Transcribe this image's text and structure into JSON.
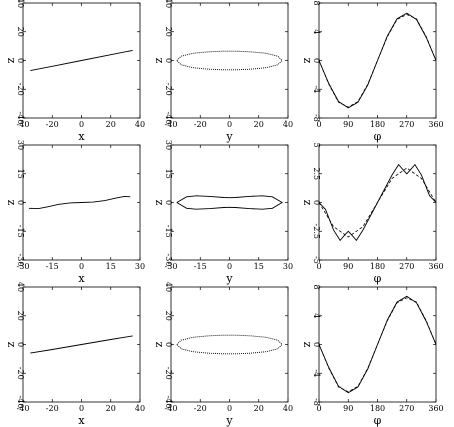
{
  "figure": {
    "rows": 3,
    "cols": 3
  },
  "chart_data": [
    {
      "type": "line",
      "row": 0,
      "col": 0,
      "xlabel": "x",
      "ylabel": "z",
      "xlim": [
        -40,
        40
      ],
      "ylim": [
        -40,
        40
      ],
      "xticks": [
        "-40",
        "-20",
        "0",
        "20",
        "40"
      ],
      "yticks": [
        "-40",
        "-20",
        "0",
        "20",
        "40"
      ],
      "series": [
        {
          "style": "solid",
          "x": [
            -35,
            -20,
            0,
            20,
            35
          ],
          "y": [
            -7,
            -4,
            0,
            4,
            7
          ]
        }
      ]
    },
    {
      "type": "line",
      "row": 0,
      "col": 1,
      "xlabel": "y",
      "ylabel": "z",
      "xlim": [
        -40,
        40
      ],
      "ylim": [
        -40,
        40
      ],
      "xticks": [
        "-40",
        "-20",
        "0",
        "20",
        "40"
      ],
      "yticks": [
        "-40",
        "-20",
        "0",
        "20",
        "40"
      ],
      "series": [
        {
          "style": "dotted",
          "x": [
            -36,
            -33,
            -25,
            -15,
            -5,
            0,
            5,
            15,
            25,
            33,
            36,
            33,
            25,
            15,
            5,
            0,
            -5,
            -15,
            -25,
            -33,
            -36
          ],
          "y": [
            0,
            3,
            5,
            6,
            6.5,
            6.5,
            6.5,
            6,
            5,
            3,
            0,
            -3,
            -5,
            -6,
            -6.5,
            -6.5,
            -6.5,
            -6,
            -5,
            -3,
            0
          ]
        }
      ]
    },
    {
      "type": "line",
      "row": 0,
      "col": 2,
      "xlabel": "φ",
      "ylabel": "z",
      "xlim": [
        0,
        360
      ],
      "ylim": [
        -8,
        8
      ],
      "xticks": [
        "0",
        "90",
        "180",
        "270",
        "360"
      ],
      "yticks": [
        "-8",
        "-4",
        "0",
        "4",
        "8"
      ],
      "series": [
        {
          "style": "solid",
          "x": [
            0,
            30,
            60,
            90,
            120,
            150,
            180,
            210,
            240,
            270,
            300,
            330,
            360
          ],
          "y": [
            0,
            -3.2,
            -5.7,
            -6.6,
            -5.8,
            -3.4,
            0,
            3.4,
            5.8,
            6.6,
            5.7,
            3.2,
            0
          ]
        },
        {
          "style": "dashed",
          "x": [
            0,
            30,
            60,
            90,
            120,
            150,
            180,
            210,
            240,
            270,
            300,
            330,
            360
          ],
          "y": [
            0,
            -3.3,
            -5.8,
            -6.5,
            -5.7,
            -3.3,
            0,
            3.3,
            5.7,
            6.4,
            5.8,
            3.3,
            0
          ]
        }
      ]
    },
    {
      "type": "line",
      "row": 1,
      "col": 0,
      "xlabel": "x",
      "ylabel": "z",
      "xlim": [
        -30,
        30
      ],
      "ylim": [
        -30,
        30
      ],
      "xticks": [
        "-30",
        "-15",
        "0",
        "15",
        "30"
      ],
      "yticks": [
        "-30",
        "-15",
        "0",
        "15",
        "30"
      ],
      "series": [
        {
          "style": "solid",
          "x": [
            -27,
            -22,
            -17,
            -12,
            -6,
            0,
            6,
            12,
            17,
            22,
            25
          ],
          "y": [
            -3,
            -3.2,
            -2.2,
            -1,
            -0.2,
            0,
            0.2,
            1,
            2.2,
            3.2,
            3
          ]
        }
      ]
    },
    {
      "type": "line",
      "row": 1,
      "col": 1,
      "xlabel": "y",
      "ylabel": "z",
      "xlim": [
        -30,
        30
      ],
      "ylim": [
        -30,
        30
      ],
      "xticks": [
        "-30",
        "-15",
        "0",
        "15",
        "30"
      ],
      "yticks": [
        "-30",
        "-15",
        "0",
        "15",
        "30"
      ],
      "series": [
        {
          "style": "solid",
          "x": [
            -27,
            -22,
            -17,
            -10,
            -3,
            0,
            3,
            10,
            17,
            22,
            27,
            22,
            17,
            10,
            3,
            0,
            -3,
            -10,
            -17,
            -22,
            -27
          ],
          "y": [
            0,
            3,
            3.5,
            3.2,
            2.6,
            2.5,
            2.6,
            3.2,
            3.5,
            3,
            0,
            -3,
            -3.5,
            -3.2,
            -2.6,
            -2.5,
            -2.6,
            -3.2,
            -3.5,
            -3,
            0
          ]
        }
      ]
    },
    {
      "type": "line",
      "row": 1,
      "col": 2,
      "xlabel": "φ",
      "ylabel": "z",
      "xlim": [
        0,
        360
      ],
      "ylim": [
        -5,
        5
      ],
      "xticks": [
        "0",
        "90",
        "180",
        "270",
        "360"
      ],
      "yticks": [
        "-5",
        "-2.5",
        "0",
        "2.5",
        "5"
      ],
      "series": [
        {
          "style": "solid",
          "x": [
            0,
            20,
            45,
            65,
            80,
            90,
            100,
            115,
            135,
            180,
            225,
            245,
            260,
            270,
            280,
            295,
            315,
            340,
            360
          ],
          "y": [
            0,
            -0.6,
            -2.4,
            -3.3,
            -2.8,
            -2.5,
            -2.8,
            -3.3,
            -2.4,
            0,
            2.4,
            3.3,
            2.8,
            2.5,
            2.8,
            3.3,
            2.4,
            0.6,
            0
          ]
        },
        {
          "style": "dashed",
          "x": [
            0,
            45,
            90,
            135,
            180,
            225,
            270,
            315,
            360
          ],
          "y": [
            0,
            -2.1,
            -3.0,
            -2.1,
            0,
            2.1,
            3.0,
            2.1,
            0
          ]
        }
      ]
    },
    {
      "type": "line",
      "row": 2,
      "col": 0,
      "xlabel": "x",
      "ylabel": "z",
      "xlim": [
        -40,
        40
      ],
      "ylim": [
        -40,
        40
      ],
      "xticks": [
        "-40",
        "-20",
        "0",
        "20",
        "40"
      ],
      "yticks": [
        "-40",
        "-20",
        "0",
        "20",
        "40"
      ],
      "series": [
        {
          "style": "solid",
          "x": [
            -35,
            -20,
            0,
            20,
            35
          ],
          "y": [
            -6,
            -3.5,
            0,
            3.5,
            6
          ]
        }
      ]
    },
    {
      "type": "line",
      "row": 2,
      "col": 1,
      "xlabel": "y",
      "ylabel": "z",
      "xlim": [
        -40,
        40
      ],
      "ylim": [
        -40,
        40
      ],
      "xticks": [
        "-40",
        "-20",
        "0",
        "20",
        "40"
      ],
      "yticks": [
        "-40",
        "-20",
        "0",
        "20",
        "40"
      ],
      "series": [
        {
          "style": "dotted",
          "x": [
            -36,
            -33,
            -25,
            -15,
            -5,
            0,
            5,
            15,
            25,
            33,
            36,
            33,
            25,
            15,
            5,
            0,
            -5,
            -15,
            -25,
            -33,
            -36
          ],
          "y": [
            0,
            3,
            5,
            6,
            6.5,
            6.5,
            6.5,
            6,
            5,
            3,
            0,
            -3,
            -5,
            -6,
            -6.5,
            -6.5,
            -6.5,
            -6,
            -5,
            -3,
            0
          ]
        }
      ]
    },
    {
      "type": "line",
      "row": 2,
      "col": 2,
      "xlabel": "φ",
      "ylabel": "z",
      "xlim": [
        0,
        360
      ],
      "ylim": [
        -8,
        8
      ],
      "xticks": [
        "0",
        "90",
        "180",
        "270",
        "360"
      ],
      "yticks": [
        "-8",
        "-4",
        "0",
        "4",
        "8"
      ],
      "series": [
        {
          "style": "solid",
          "x": [
            0,
            30,
            60,
            90,
            120,
            150,
            180,
            210,
            240,
            270,
            300,
            330,
            360
          ],
          "y": [
            0,
            -3.2,
            -5.8,
            -6.7,
            -5.9,
            -3.4,
            0,
            3.4,
            5.9,
            6.7,
            5.8,
            3.2,
            0
          ]
        },
        {
          "style": "dashed",
          "x": [
            0,
            30,
            60,
            90,
            120,
            150,
            180,
            210,
            240,
            270,
            300,
            330,
            360
          ],
          "y": [
            0,
            -3.3,
            -5.9,
            -6.6,
            -5.8,
            -3.3,
            0,
            3.3,
            5.8,
            6.5,
            5.9,
            3.3,
            0
          ]
        }
      ]
    }
  ]
}
